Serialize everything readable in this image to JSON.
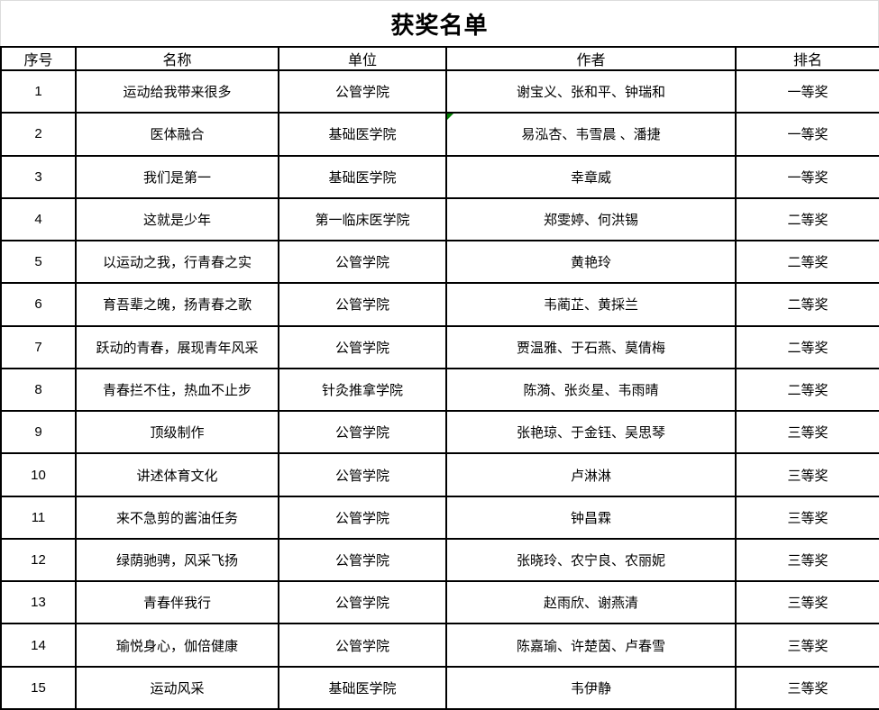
{
  "title": "获奖名单",
  "table": {
    "headers": [
      "序号",
      "名称",
      "单位",
      "作者",
      "排名"
    ],
    "rows": [
      [
        "1",
        "运动给我带来很多",
        "公管学院",
        "谢宝义、张和平、钟瑞和",
        "一等奖"
      ],
      [
        "2",
        "医体融合",
        "基础医学院",
        "易泓杏、韦雪晨 、潘捷",
        "一等奖"
      ],
      [
        "3",
        "我们是第一",
        "基础医学院",
        "幸章威",
        "一等奖"
      ],
      [
        "4",
        "这就是少年",
        "第一临床医学院",
        "郑雯婷、何洪锡",
        "二等奖"
      ],
      [
        "5",
        "以运动之我，行青春之实",
        "公管学院",
        "黄艳玲",
        "二等奖"
      ],
      [
        "6",
        "育吾辈之魄，扬青春之歌",
        "公管学院",
        "韦蔺芷、黄採兰",
        "二等奖"
      ],
      [
        "7",
        "跃动的青春，展现青年风采",
        "公管学院",
        "贾温雅、于石燕、莫倩梅",
        "二等奖"
      ],
      [
        "8",
        "青春拦不住，热血不止步",
        "针灸推拿学院",
        "陈漪、张炎星、韦雨晴",
        "二等奖"
      ],
      [
        "9",
        "顶级制作",
        "公管学院",
        "张艳琼、于金钰、吴思琴",
        "三等奖"
      ],
      [
        "10",
        "讲述体育文化",
        "公管学院",
        "卢淋淋",
        "三等奖"
      ],
      [
        "11",
        "来不急剪的酱油任务",
        "公管学院",
        "钟昌霖",
        "三等奖"
      ],
      [
        "12",
        "绿荫驰骋，风采飞扬",
        "公管学院",
        "张晓玲、农宁良、农丽妮",
        "三等奖"
      ],
      [
        "13",
        "青春伴我行",
        "公管学院",
        "赵雨欣、谢燕清",
        "三等奖"
      ],
      [
        "14",
        "瑜悦身心，伽倍健康",
        "公管学院",
        "陈嘉瑜、许楚茵、卢春雪",
        "三等奖"
      ],
      [
        "15",
        "运动风采",
        "基础医学院",
        "韦伊静",
        "三等奖"
      ]
    ],
    "column_keys": [
      "no",
      "name",
      "unit",
      "authors",
      "rank"
    ]
  },
  "error_marker": {
    "row_index": 1,
    "col_index": 3,
    "color": "#008000"
  }
}
